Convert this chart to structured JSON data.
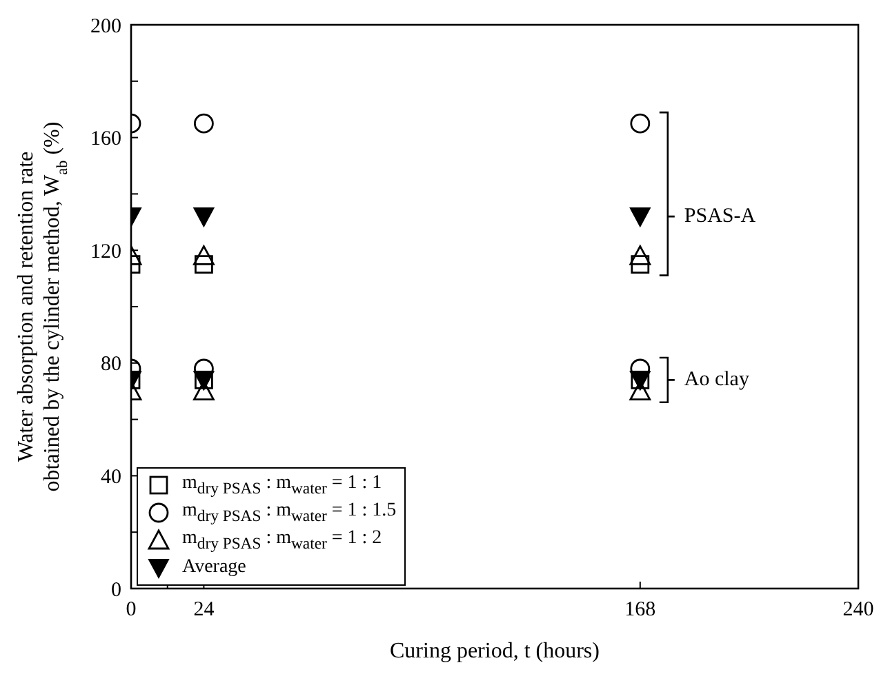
{
  "chart_data": {
    "type": "scatter",
    "xlabel": "Curing period, t (hours)",
    "ylabel": "Water absorption and retention rate obtained by the cylinder method, W$_{ab}$ (%)",
    "xlim": [
      0,
      240
    ],
    "xticks": [
      0,
      {
        "value": 12,
        "label": null
      },
      24,
      168,
      240
    ],
    "ylim": [
      0,
      200
    ],
    "yticks": [
      0,
      {
        "value": 20,
        "label": null
      },
      40,
      {
        "value": 60,
        "label": null
      },
      80,
      {
        "value": 100,
        "label": null
      },
      120,
      {
        "value": 140,
        "label": null
      },
      160,
      {
        "value": 180,
        "label": null
      },
      200
    ],
    "grid": false,
    "legend": "bottom left",
    "series": [
      {
        "name": "m$_{dry PSAS}$ : m$_{water}$ = 1 : 1",
        "color": "#000000",
        "marker": "square",
        "x": [
          0,
          24,
          168,
          0,
          24,
          168
        ],
        "values": [
          115,
          115,
          115,
          74,
          74,
          74
        ]
      },
      {
        "name": "m$_{dry PSAS}$ : m$_{water}$ = 1 : 1.5",
        "color": "#000000",
        "marker": "circle",
        "x": [
          0,
          24,
          168,
          0,
          24,
          168
        ],
        "values": [
          165,
          165,
          165,
          78,
          78,
          78
        ]
      },
      {
        "name": "m$_{dry PSAS}$ : m$_{water}$ = 1 : 2",
        "color": "#000000",
        "marker": "triangle",
        "x": [
          0,
          24,
          168,
          0,
          24,
          168
        ],
        "values": [
          118,
          118,
          118,
          70,
          70,
          70
        ]
      },
      {
        "name": "Average",
        "color": "#000000",
        "marker": "triangle-down",
        "x": [
          0,
          24,
          168,
          0,
          24,
          168
        ],
        "values": [
          132,
          132,
          132,
          74,
          74,
          74
        ]
      }
    ],
    "annotations": [
      {
        "text": "PSAS-A",
        "x": 168,
        "y": 132
      },
      {
        "text": "Ao clay",
        "x": 168,
        "y": 74
      }
    ]
  }
}
